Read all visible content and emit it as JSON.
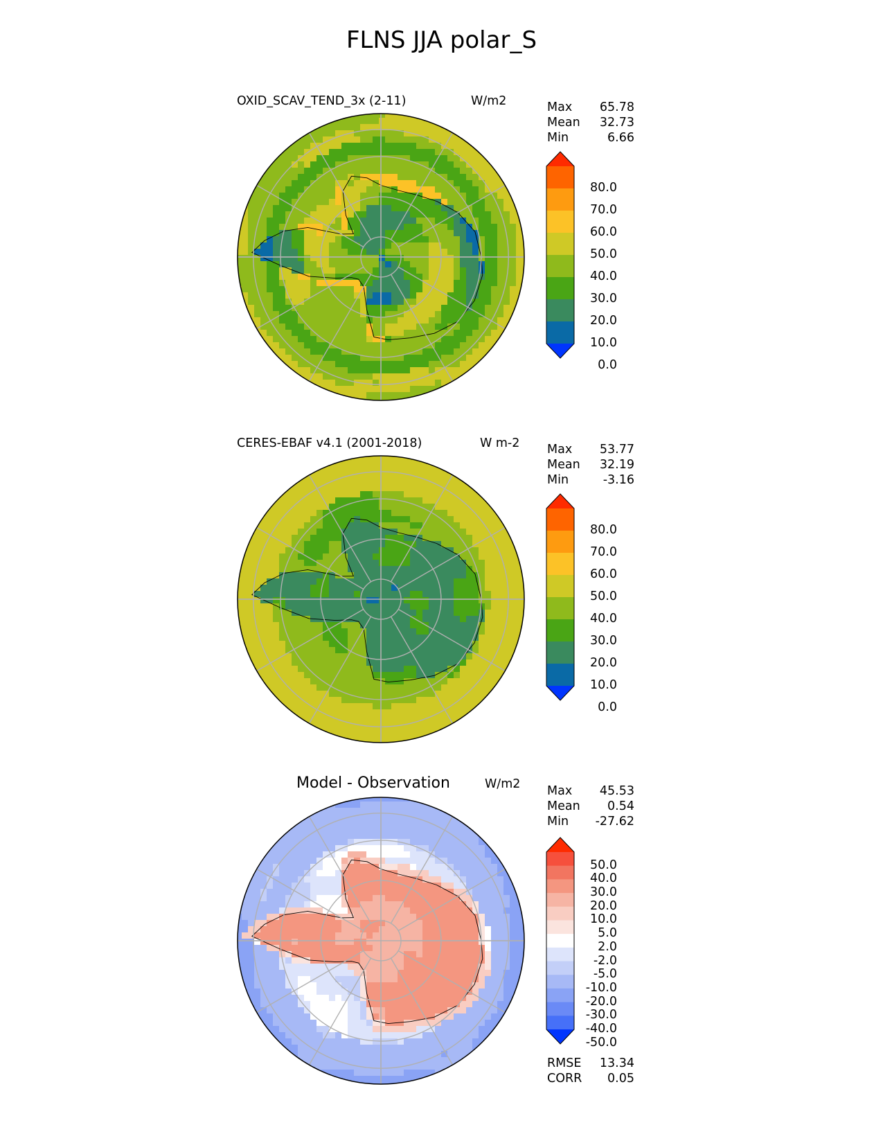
{
  "figure_title": "FLNS JJA polar_S",
  "panels": [
    {
      "title": "OXID_SCAV_TEND_3x (2-11)",
      "units": "W/m2",
      "stats": [
        {
          "label": "Max",
          "value": "65.78"
        },
        {
          "label": "Mean",
          "value": "32.73"
        },
        {
          "label": "Min",
          "value": "6.66"
        }
      ],
      "colorbar": {
        "labels": [
          "80.0",
          "70.0",
          "60.0",
          "50.0",
          "40.0",
          "30.0",
          "20.0",
          "10.0",
          "0.0"
        ],
        "colors": [
          "#fe2b00",
          "#fe6400",
          "#fe9b10",
          "#fcc227",
          "#cfc926",
          "#8fba1c",
          "#4aa515",
          "#3a8a5e",
          "#0a6aa6",
          "#0035fe"
        ]
      },
      "map_style": "model"
    },
    {
      "title": "CERES-EBAF v4.1 (2001-2018)",
      "units": "W m-2",
      "stats": [
        {
          "label": "Max",
          "value": "53.77"
        },
        {
          "label": "Mean",
          "value": "32.19"
        },
        {
          "label": "Min",
          "value": "-3.16"
        }
      ],
      "colorbar": {
        "labels": [
          "80.0",
          "70.0",
          "60.0",
          "50.0",
          "40.0",
          "30.0",
          "20.0",
          "10.0",
          "0.0"
        ],
        "colors": [
          "#fe2b00",
          "#fe6400",
          "#fe9b10",
          "#fcc227",
          "#cfc926",
          "#8fba1c",
          "#4aa515",
          "#3a8a5e",
          "#0a6aa6",
          "#0035fe"
        ]
      },
      "map_style": "obs"
    },
    {
      "title": "Model - Observation",
      "units": "W/m2",
      "stats": [
        {
          "label": "Max",
          "value": "45.53"
        },
        {
          "label": "Mean",
          "value": "0.54"
        },
        {
          "label": "Min",
          "value": "-27.62"
        }
      ],
      "colorbar": {
        "labels": [
          "50.0",
          "40.0",
          "30.0",
          "20.0",
          "10.0",
          "5.0",
          "2.0",
          "-2.0",
          "-5.0",
          "-10.0",
          "-20.0",
          "-30.0",
          "-40.0",
          "-50.0"
        ],
        "colors": [
          "#fe2b00",
          "#f6503c",
          "#f27560",
          "#f49680",
          "#f6b4a4",
          "#f9cdc2",
          "#fbe4de",
          "#ffffff",
          "#dde4fb",
          "#c3cff8",
          "#a7b9f6",
          "#8aa3f5",
          "#6a8af6",
          "#4670f8",
          "#0035fe"
        ]
      },
      "stats_bottom": [
        {
          "label": "RMSE",
          "value": "13.34"
        },
        {
          "label": "CORR",
          "value": "0.05"
        }
      ],
      "map_style": "diff"
    }
  ]
}
